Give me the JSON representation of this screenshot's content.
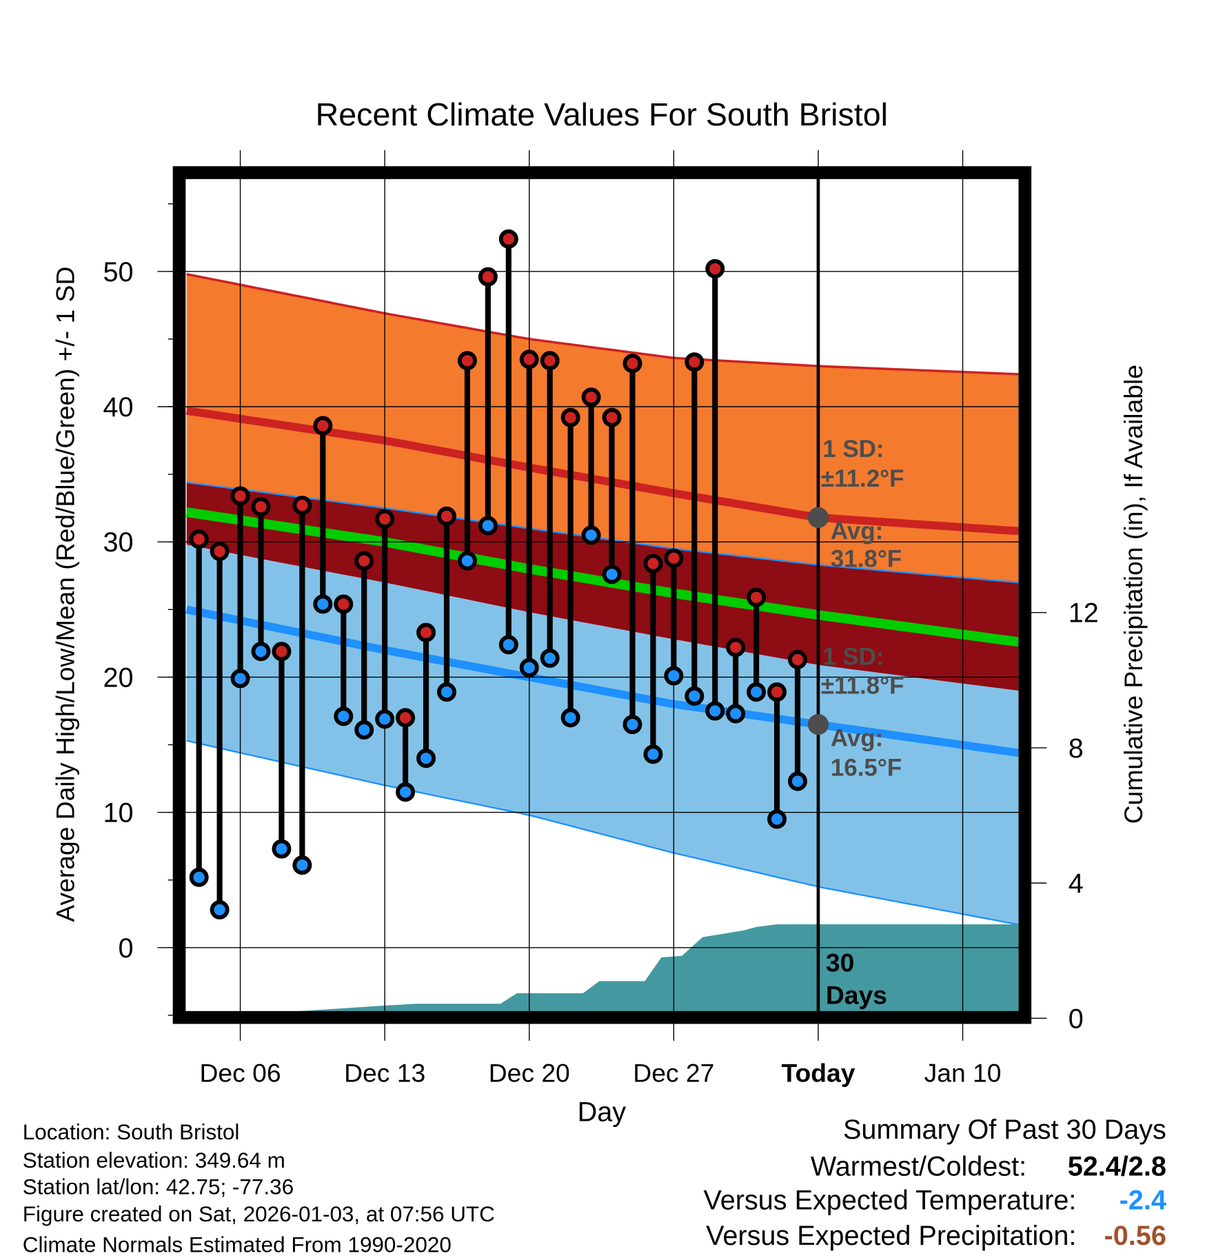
{
  "chart_data": {
    "type": "line",
    "title": "Recent Climate Values For South Bristol",
    "xlabel": "Day",
    "ylabel": "Average Daily High/Low/Mean (Red/Blue/Green) +/- 1 SD",
    "y2label": "Cumulative Precipitation (in), If Available",
    "x_day_zero": "Dec 06",
    "xlim": [
      -2.6,
      37.7
    ],
    "ylim": [
      -4.75,
      56.9
    ],
    "y2lim": [
      0,
      15
    ],
    "grid": true,
    "x_ticks": [
      {
        "day": 0,
        "label": "Dec 06"
      },
      {
        "day": 7,
        "label": "Dec 13"
      },
      {
        "day": 14,
        "label": "Dec 20"
      },
      {
        "day": 21,
        "label": "Dec 27"
      },
      {
        "day": 28,
        "label": "Today"
      },
      {
        "day": 35,
        "label": "Jan 10"
      }
    ],
    "y_ticks": [
      {
        "value": 0,
        "label": "0"
      },
      {
        "value": 10,
        "label": "10"
      },
      {
        "value": 20,
        "label": "20"
      },
      {
        "value": 30,
        "label": "30"
      },
      {
        "value": 40,
        "label": "40"
      },
      {
        "value": 50,
        "label": "50"
      }
    ],
    "y2_ticks": [
      {
        "value": 0,
        "label": "0"
      },
      {
        "value": 4,
        "label": "4"
      },
      {
        "value": 8,
        "label": "8"
      },
      {
        "value": 12,
        "label": "12"
      }
    ],
    "observations": {
      "days": [
        -2,
        -1,
        0,
        1,
        2,
        3,
        4,
        5,
        6,
        7,
        8,
        9,
        10,
        11,
        12,
        13,
        14,
        15,
        16,
        17,
        18,
        19,
        20,
        21,
        22,
        23,
        24,
        25,
        26,
        27
      ],
      "high": [
        30.2,
        29.3,
        33.4,
        32.6,
        21.9,
        32.7,
        38.6,
        25.4,
        28.6,
        31.7,
        17.0,
        23.3,
        31.9,
        43.4,
        49.6,
        52.4,
        43.5,
        43.4,
        39.2,
        40.7,
        39.2,
        43.2,
        28.4,
        28.8,
        43.3,
        50.2,
        22.2,
        25.9,
        18.9,
        21.3
      ],
      "low": [
        5.2,
        2.8,
        19.9,
        21.9,
        7.3,
        6.1,
        25.4,
        17.1,
        16.1,
        16.9,
        11.5,
        14.0,
        18.9,
        28.6,
        31.2,
        22.4,
        20.7,
        21.4,
        17.0,
        30.5,
        27.6,
        16.5,
        14.3,
        20.1,
        18.6,
        17.5,
        17.3,
        18.9,
        9.5,
        12.3
      ]
    },
    "normals": {
      "days": [
        -2.6,
        7,
        14,
        21,
        28,
        37.7
      ],
      "high_plus_sd": [
        49.8,
        46.9,
        45.0,
        43.6,
        43.0,
        42.4
      ],
      "high_mean": [
        39.7,
        37.5,
        35.5,
        33.6,
        31.8,
        30.8
      ],
      "high_minus_sd": [
        34.4,
        32.5,
        31.0,
        29.5,
        28.3,
        27.0
      ],
      "mean": [
        32.2,
        30.0,
        28.0,
        26.2,
        24.6,
        22.6
      ],
      "low_plus_sd": [
        29.8,
        27.0,
        24.8,
        22.8,
        20.9,
        19.0
      ],
      "low_mean": [
        25.0,
        22.0,
        20.0,
        18.0,
        16.5,
        14.4
      ],
      "low_minus_sd": [
        15.3,
        12.0,
        9.8,
        7.0,
        4.5,
        1.7
      ]
    },
    "precip_cumulative": {
      "days": [
        -2.6,
        3.6,
        6.6,
        8.5,
        12.6,
        13.4,
        16.6,
        17.4,
        19.6,
        20.4,
        21.4,
        22.4,
        23.4,
        24.4,
        25.0,
        26.0,
        37.7
      ],
      "inches": [
        0,
        0.24,
        0.36,
        0.43,
        0.43,
        0.74,
        0.74,
        1.1,
        1.1,
        1.8,
        1.85,
        2.4,
        2.5,
        2.6,
        2.7,
        2.78,
        2.78
      ]
    },
    "annotations": {
      "high_sd_label": "1 SD:",
      "high_sd_value": "±11.2°F",
      "high_avg_label": "Avg:",
      "high_avg_value": "31.8°F",
      "high_avg_marker": 31.8,
      "low_sd_label": "1 SD:",
      "low_sd_value": "±11.8°F",
      "low_avg_label": "Avg:",
      "low_avg_value": "16.5°F",
      "low_avg_marker": 16.5,
      "period_count": "30",
      "period_unit": "Days"
    }
  },
  "colors": {
    "high_band": "#F47A2E",
    "high_line": "#CC2222",
    "overlap_band": "#8E0C14",
    "mean_line": "#00CC00",
    "low_band": "#83C2E8",
    "low_line": "#1E90FF",
    "precip": "#4499A0",
    "annotation": "#4D4D4D",
    "high_dot": "#CC2222",
    "low_dot": "#1E90FF",
    "temp_anomaly": "#1E90FF",
    "precip_anomaly": "#A0522D"
  },
  "footer": {
    "location": "Location: South Bristol",
    "elevation": "Station elevation: 349.64 m",
    "latlon": "Station lat/lon: 42.75; -77.36",
    "created": "Figure created on Sat, 2026-01-03, at 07:56 UTC",
    "normals": "Climate Normals Estimated From 1990-2020"
  },
  "summary": {
    "title": "Summary Of Past 30 Days",
    "warmest_coldest_label": "Warmest/Coldest:",
    "warmest_coldest_value": "52.4/2.8",
    "temp_label": "Versus Expected Temperature:",
    "temp_value": "-2.4",
    "precip_label": "Versus Expected Precipitation:",
    "precip_value": "-0.56"
  }
}
